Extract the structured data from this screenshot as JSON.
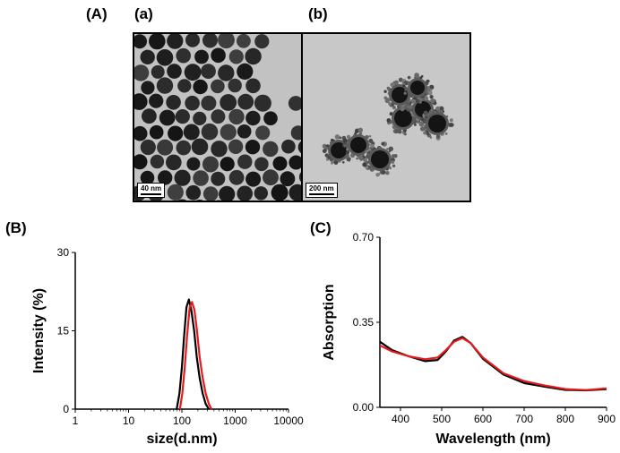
{
  "figure": {
    "panel_A_label": "(A)",
    "panel_a_label": "(a)",
    "panel_b_label": "(b)",
    "panel_B_label": "(B)",
    "panel_C_label": "(C)",
    "scale_a": "40 nm",
    "scale_b": "200 nm"
  },
  "chart_data": [
    {
      "type": "line",
      "panel": "B",
      "xlabel": "size(d.nm)",
      "ylabel": "Intensity (%)",
      "xscale": "log",
      "xlim": [
        1,
        10000
      ],
      "ylim": [
        0,
        30
      ],
      "xticks": [
        "1",
        "10",
        "100",
        "1000",
        "10000"
      ],
      "yticks": [
        "0",
        "15",
        "30"
      ],
      "grid": false,
      "series": [
        {
          "color": "#000000",
          "x": [
            80,
            90,
            100,
            110,
            122,
            135,
            150,
            170,
            190,
            215,
            245,
            280,
            320
          ],
          "y": [
            0,
            3,
            8,
            14,
            19.5,
            21,
            19,
            15,
            10,
            6,
            3,
            1,
            0
          ]
        },
        {
          "color": "#e41a1c",
          "x": [
            92,
            102,
            113,
            125,
            140,
            155,
            172,
            192,
            215,
            245,
            280,
            320,
            360
          ],
          "y": [
            0,
            3,
            8,
            14,
            19.5,
            20.5,
            19,
            15,
            10,
            6,
            3,
            1,
            0
          ]
        }
      ]
    },
    {
      "type": "line",
      "panel": "C",
      "xlabel": "Wavelength (nm)",
      "ylabel": "Absorption",
      "xlim": [
        350,
        900
      ],
      "ylim": [
        0,
        0.7
      ],
      "xticks": [
        "400",
        "500",
        "600",
        "700",
        "800",
        "900"
      ],
      "yticks": [
        "0.00",
        "0.35",
        "0.70"
      ],
      "grid": false,
      "series": [
        {
          "color": "#000000",
          "x": [
            350,
            380,
            420,
            460,
            490,
            510,
            530,
            550,
            570,
            600,
            650,
            700,
            750,
            800,
            850,
            900
          ],
          "y": [
            0.27,
            0.235,
            0.21,
            0.19,
            0.195,
            0.23,
            0.275,
            0.29,
            0.265,
            0.2,
            0.135,
            0.1,
            0.085,
            0.072,
            0.07,
            0.075
          ]
        },
        {
          "color": "#e41a1c",
          "x": [
            350,
            380,
            420,
            460,
            490,
            510,
            530,
            550,
            570,
            600,
            650,
            700,
            750,
            800,
            850,
            900
          ],
          "y": [
            0.255,
            0.23,
            0.21,
            0.198,
            0.205,
            0.235,
            0.27,
            0.285,
            0.265,
            0.205,
            0.14,
            0.108,
            0.09,
            0.075,
            0.071,
            0.078
          ]
        }
      ]
    }
  ]
}
